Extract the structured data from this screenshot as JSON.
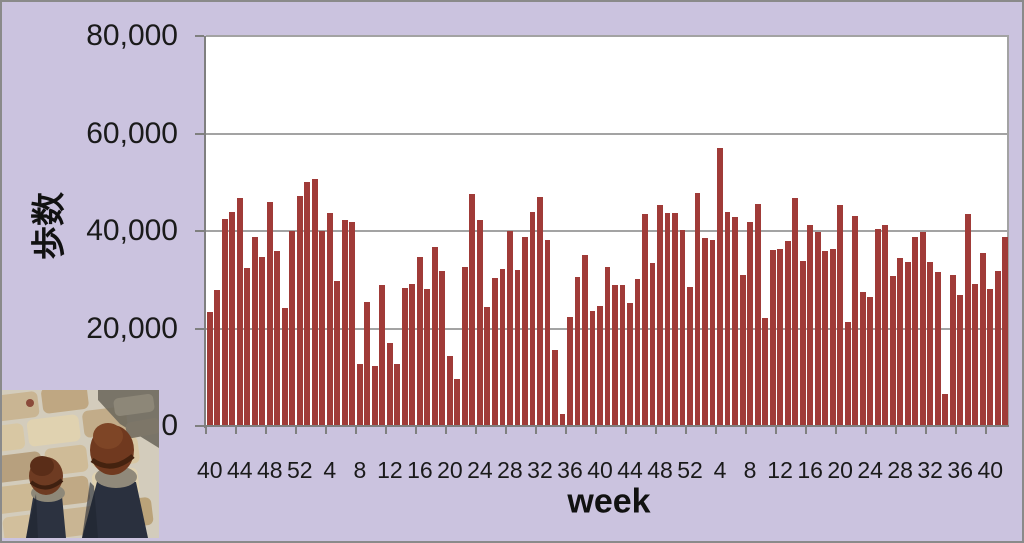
{
  "colors": {
    "chart_background": "#cbc3df",
    "chart_border": "#8a8a8a",
    "plot_background": "#ffffff",
    "gridline": "#a3a3a3",
    "axis_line": "#7f7f7f",
    "bar": "#a03b38",
    "text": "#1a1a1a"
  },
  "photo": {
    "description": "top-down photo of a walker's feet in brown shoes and dark jeans on beige stone pavement"
  },
  "chart_data": {
    "type": "bar",
    "title": "",
    "xlabel": "week",
    "ylabel": "歩数",
    "ylim": [
      0,
      80000
    ],
    "y_tick_step": 20000,
    "y_tick_labels_top_to_bottom": [
      "80,000",
      "60,000",
      "40,000",
      "20,000",
      "0"
    ],
    "x_tick_labels": [
      "40",
      "44",
      "48",
      "52",
      "4",
      "8",
      "12",
      "16",
      "20",
      "24",
      "28",
      "32",
      "36",
      "40",
      "44",
      "48",
      "52",
      "4",
      "8",
      "12",
      "16",
      "20",
      "24",
      "28",
      "32",
      "36",
      "40"
    ],
    "x_label_every_n_bars": 4,
    "grid": "horizontal",
    "legend": "none",
    "values": [
      23400,
      27900,
      42400,
      43800,
      46800,
      32400,
      38800,
      34600,
      46000,
      35800,
      24200,
      40000,
      47100,
      50000,
      50700,
      40000,
      43600,
      29700,
      42300,
      41900,
      12800,
      25400,
      12300,
      28900,
      17100,
      12800,
      28300,
      29100,
      34700,
      28100,
      36700,
      31800,
      14300,
      9600,
      32600,
      47500,
      42300,
      24500,
      30400,
      32200,
      40100,
      32000,
      38700,
      43800,
      47000,
      38200,
      15500,
      2400,
      22300,
      30500,
      35100,
      23500,
      24700,
      32600,
      28900,
      28900,
      25300,
      30100,
      43500,
      33400,
      45300,
      43700,
      43700,
      40200,
      28500,
      47700,
      38500,
      38200,
      57100,
      43800,
      42800,
      30900,
      41900,
      45500,
      22200,
      36200,
      36400,
      37900,
      46800,
      33900,
      41200,
      39900,
      36000,
      36400,
      45300,
      21400,
      43100,
      27400,
      26400,
      40500,
      41200,
      30700,
      34500,
      33600,
      38700,
      39700,
      33700,
      31500,
      6500,
      30900,
      26800,
      43400,
      29100,
      35500,
      28100,
      31900,
      38800
    ]
  }
}
